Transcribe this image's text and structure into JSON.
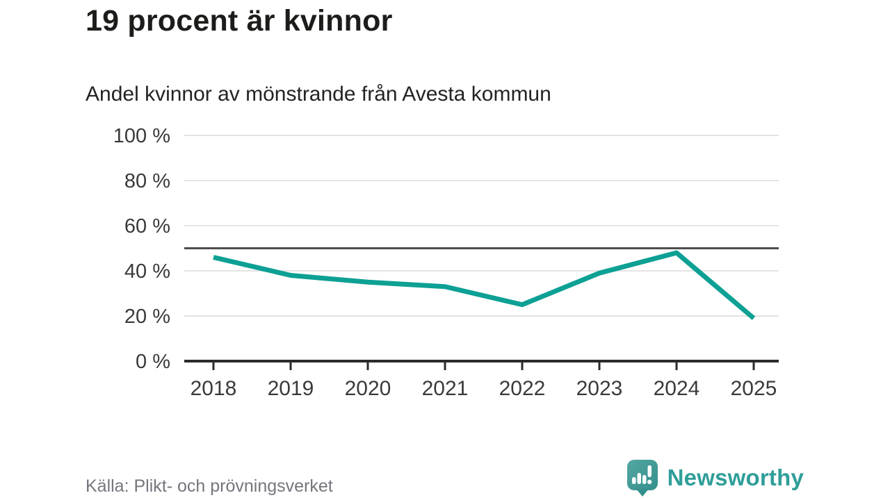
{
  "header": {
    "title": "19 procent är kvinnor",
    "subtitle": "Andel kvinnor av mönstrande från Avesta kommun"
  },
  "chart_data": {
    "type": "line",
    "categories": [
      "2018",
      "2019",
      "2020",
      "2021",
      "2022",
      "2023",
      "2024",
      "2025"
    ],
    "series": [
      {
        "name": "Andel kvinnor av mönstrande",
        "values": [
          46,
          38,
          35,
          33,
          25,
          39,
          48,
          19
        ]
      }
    ],
    "title": "Andel kvinnor av mönstrande från Avesta kommun",
    "xlabel": "",
    "ylabel": "",
    "ylim": [
      0,
      100
    ],
    "y_ticks": [
      0,
      20,
      40,
      60,
      80,
      100
    ],
    "y_tick_suffix": " %",
    "reference_line": 50,
    "grid": true,
    "legend_position": "none",
    "colors": {
      "line": "#0da094",
      "axis": "#2b2b2b",
      "grid": "#e3e3e3",
      "reference_line": "#4d4d4d",
      "tick_label": "#3a3a3a"
    }
  },
  "footer": {
    "source": "Källa: Plikt- och prövningsverket",
    "brand": "Newsworthy",
    "brand_color": "#2f9e99",
    "logo_bubble_color": "#449a97"
  }
}
